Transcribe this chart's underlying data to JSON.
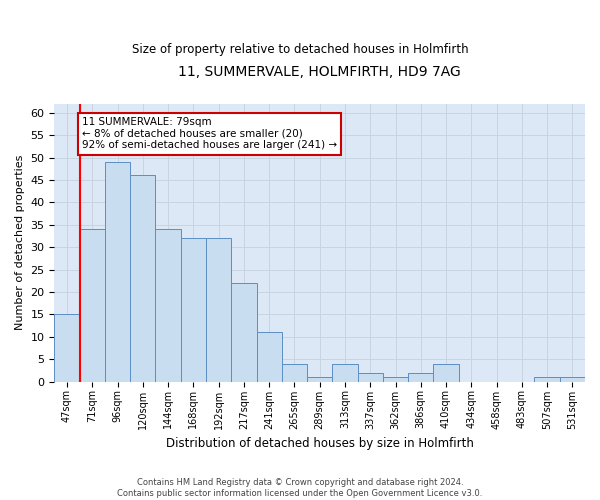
{
  "title": "11, SUMMERVALE, HOLMFIRTH, HD9 7AG",
  "subtitle": "Size of property relative to detached houses in Holmfirth",
  "xlabel": "Distribution of detached houses by size in Holmfirth",
  "ylabel": "Number of detached properties",
  "bar_labels": [
    "47sqm",
    "71sqm",
    "96sqm",
    "120sqm",
    "144sqm",
    "168sqm",
    "192sqm",
    "217sqm",
    "241sqm",
    "265sqm",
    "289sqm",
    "313sqm",
    "337sqm",
    "362sqm",
    "386sqm",
    "410sqm",
    "434sqm",
    "458sqm",
    "483sqm",
    "507sqm",
    "531sqm"
  ],
  "bar_values": [
    15,
    34,
    49,
    46,
    34,
    32,
    32,
    22,
    11,
    4,
    1,
    4,
    2,
    1,
    2,
    4,
    0,
    0,
    0,
    1,
    1
  ],
  "bar_color": "#c9ddf0",
  "bar_edge_color": "#5b8ec4",
  "ylim": [
    0,
    62
  ],
  "yticks": [
    0,
    5,
    10,
    15,
    20,
    25,
    30,
    35,
    40,
    45,
    50,
    55,
    60
  ],
  "red_line_x": 0.5,
  "annotation_text": "11 SUMMERVALE: 79sqm\n← 8% of detached houses are smaller (20)\n92% of semi-detached houses are larger (241) →",
  "annotation_box_color": "#ffffff",
  "annotation_box_edge_color": "#cc0000",
  "footer_line1": "Contains HM Land Registry data © Crown copyright and database right 2024.",
  "footer_line2": "Contains public sector information licensed under the Open Government Licence v3.0.",
  "bg_color": "#ffffff",
  "grid_color": "#c8d4e0",
  "plot_bg_color": "#dce8f5"
}
